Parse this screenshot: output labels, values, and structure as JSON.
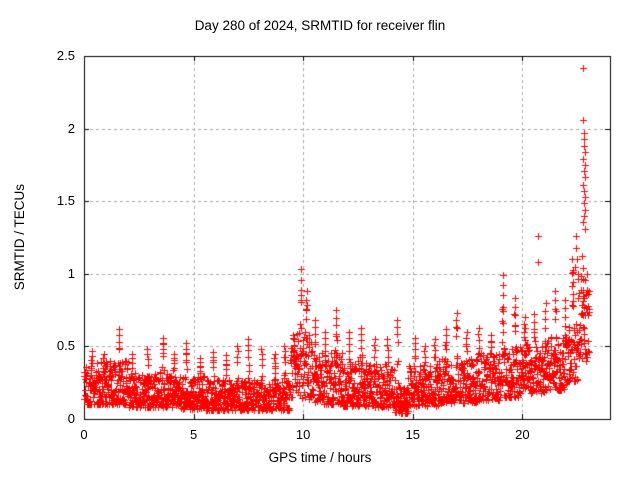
{
  "page": {
    "background": "#ffffff",
    "text_color": "#000000"
  },
  "chart_data": {
    "type": "scatter",
    "title": "Day 280 of 2024, SRMTID for receiver flin",
    "xlabel": "GPS time / hours",
    "ylabel": "SRMTID / TECUs",
    "xlim": [
      0,
      24
    ],
    "ylim": [
      0,
      2.5
    ],
    "xticks": [
      0,
      5,
      10,
      15,
      20
    ],
    "xtick_labels": [
      "0",
      "5",
      "10",
      "15",
      "20"
    ],
    "yticks": [
      0,
      0.5,
      1,
      1.5,
      2,
      2.5
    ],
    "ytick_labels": [
      "0",
      "0.5",
      "1",
      "1.5",
      "2",
      "2.5"
    ],
    "grid": {
      "show": true,
      "style": "dashed",
      "color": "#a8a8a8"
    },
    "border_color": "#000000",
    "marker": {
      "shape": "plus",
      "size": 7,
      "color": "#ff0000"
    },
    "legend": "none",
    "series": [
      {
        "name": "SRMTID",
        "color": "#ff0000",
        "x_range": [
          0,
          23.05
        ],
        "n_points": 2450,
        "seed": 280,
        "envelope": [
          [
            0.0,
            0.5,
            0.1,
            0.36
          ],
          [
            0.5,
            2.0,
            0.1,
            0.4
          ],
          [
            2.0,
            3.0,
            0.08,
            0.32
          ],
          [
            3.0,
            4.2,
            0.08,
            0.34
          ],
          [
            4.2,
            5.5,
            0.07,
            0.3
          ],
          [
            5.5,
            9.4,
            0.06,
            0.27
          ],
          [
            9.4,
            10.45,
            0.14,
            0.6
          ],
          [
            10.45,
            11.8,
            0.1,
            0.46
          ],
          [
            11.8,
            13.2,
            0.09,
            0.4
          ],
          [
            13.2,
            14.2,
            0.08,
            0.38
          ],
          [
            14.2,
            14.8,
            0.04,
            0.22
          ],
          [
            14.8,
            16.2,
            0.09,
            0.38
          ],
          [
            16.2,
            18.0,
            0.11,
            0.42
          ],
          [
            18.0,
            19.0,
            0.13,
            0.46
          ],
          [
            19.0,
            20.0,
            0.15,
            0.5
          ],
          [
            20.0,
            21.0,
            0.18,
            0.52
          ],
          [
            21.0,
            22.0,
            0.2,
            0.58
          ],
          [
            22.0,
            22.5,
            0.25,
            0.66
          ],
          [
            22.5,
            23.05,
            0.4,
            1.0
          ]
        ],
        "spikes": [
          [
            0.35,
            0.47,
            0.06
          ],
          [
            0.9,
            0.45,
            0.05
          ],
          [
            1.6,
            0.62,
            0.07
          ],
          [
            2.2,
            0.45,
            0.05
          ],
          [
            2.9,
            0.48,
            0.05
          ],
          [
            3.6,
            0.56,
            0.06
          ],
          [
            4.1,
            0.45,
            0.05
          ],
          [
            4.65,
            0.52,
            0.05
          ],
          [
            5.3,
            0.42,
            0.05
          ],
          [
            5.9,
            0.46,
            0.05
          ],
          [
            6.5,
            0.44,
            0.05
          ],
          [
            7.0,
            0.5,
            0.05
          ],
          [
            7.5,
            0.55,
            0.05
          ],
          [
            8.1,
            0.48,
            0.05
          ],
          [
            8.7,
            0.45,
            0.05
          ],
          [
            9.15,
            0.5,
            0.05
          ],
          [
            9.6,
            0.55,
            0.05
          ],
          [
            9.9,
            1.03,
            0.09
          ],
          [
            10.15,
            0.88,
            0.07
          ],
          [
            10.55,
            0.68,
            0.06
          ],
          [
            11.0,
            0.6,
            0.05
          ],
          [
            11.5,
            0.75,
            0.06
          ],
          [
            12.1,
            0.6,
            0.05
          ],
          [
            12.65,
            0.63,
            0.06
          ],
          [
            13.25,
            0.55,
            0.05
          ],
          [
            13.85,
            0.55,
            0.05
          ],
          [
            14.3,
            0.68,
            0.04
          ],
          [
            15.1,
            0.56,
            0.06
          ],
          [
            15.55,
            0.5,
            0.05
          ],
          [
            16.0,
            0.55,
            0.05
          ],
          [
            16.5,
            0.62,
            0.05
          ],
          [
            17.0,
            0.73,
            0.06
          ],
          [
            17.45,
            0.6,
            0.05
          ],
          [
            18.0,
            0.63,
            0.05
          ],
          [
            18.55,
            0.58,
            0.05
          ],
          [
            19.1,
            0.99,
            0.06
          ],
          [
            19.65,
            0.83,
            0.06
          ],
          [
            20.1,
            0.7,
            0.05
          ],
          [
            20.55,
            0.72,
            0.05
          ],
          [
            21.05,
            0.8,
            0.05
          ],
          [
            21.5,
            0.88,
            0.06
          ],
          [
            21.95,
            0.82,
            0.05
          ],
          [
            22.3,
            1.1,
            0.06
          ],
          [
            22.75,
            1.12,
            0.08
          ]
        ],
        "outliers": [
          [
            20.7,
            1.26
          ],
          [
            20.73,
            1.08
          ],
          [
            22.44,
            1.26
          ],
          [
            22.47,
            1.18
          ],
          [
            22.5,
            1.1
          ],
          [
            22.42,
            1.05
          ],
          [
            22.78,
            2.42
          ],
          [
            22.79,
            2.06
          ],
          [
            22.8,
            1.97
          ],
          [
            22.83,
            1.93
          ],
          [
            22.81,
            1.88
          ],
          [
            22.85,
            1.84
          ],
          [
            22.79,
            1.79
          ],
          [
            22.84,
            1.75
          ],
          [
            22.82,
            1.71
          ],
          [
            22.86,
            1.67
          ],
          [
            22.78,
            1.61
          ],
          [
            22.83,
            1.57
          ],
          [
            22.86,
            1.53
          ],
          [
            22.8,
            1.49
          ],
          [
            22.84,
            1.44
          ],
          [
            22.81,
            1.4
          ],
          [
            22.79,
            1.36
          ],
          [
            22.85,
            1.31
          ]
        ]
      }
    ]
  }
}
